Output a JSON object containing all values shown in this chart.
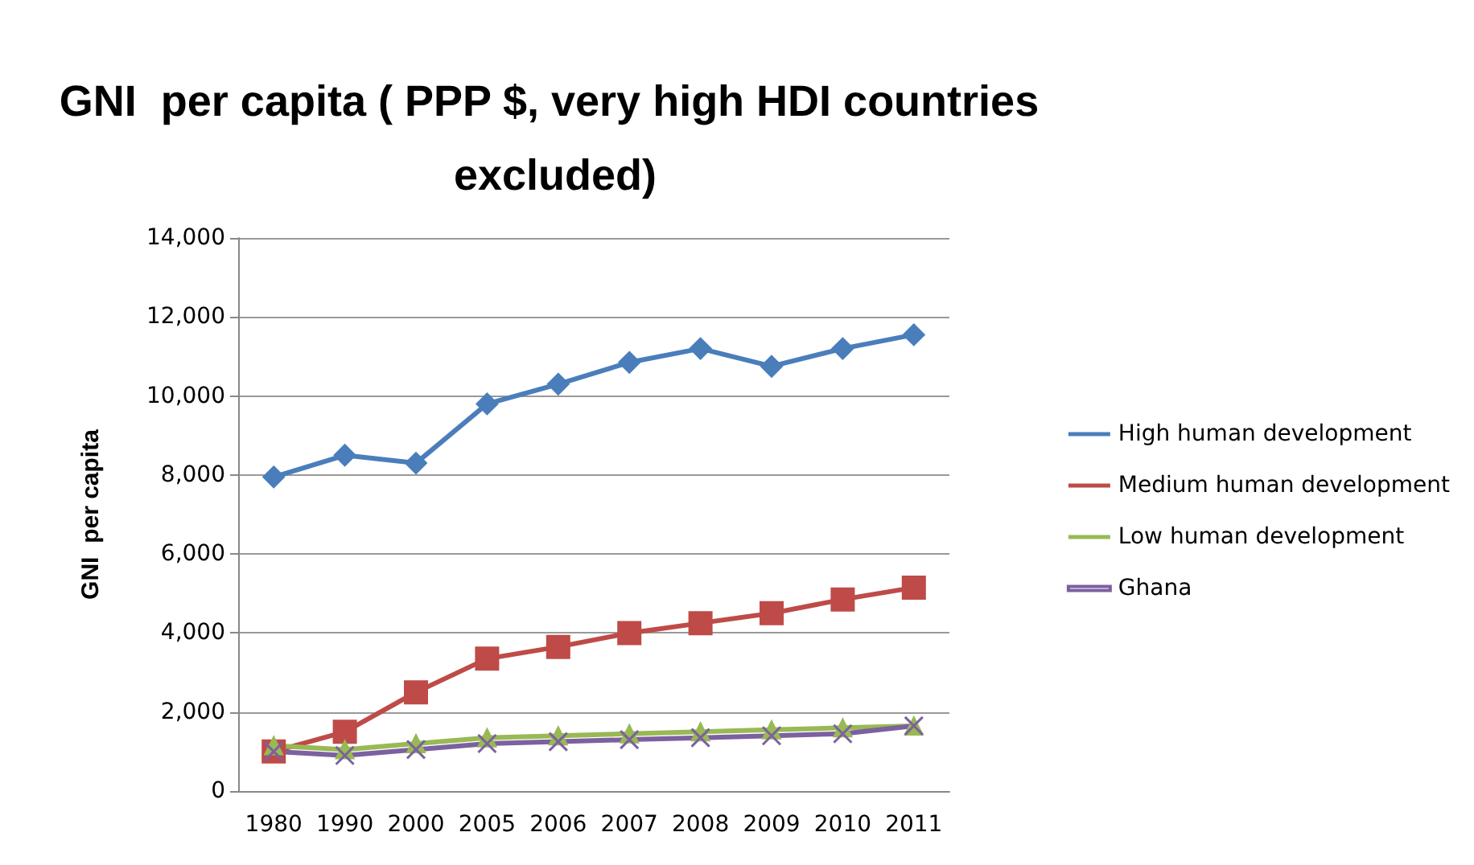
{
  "chart_data": {
    "type": "line",
    "title": "GNI  per capita ( PPP $, very high HDI countries excluded)",
    "ylabel": "GNI  per capita",
    "categories": [
      "1980",
      "1990",
      "2000",
      "2005",
      "2006",
      "2007",
      "2008",
      "2009",
      "2010",
      "2011"
    ],
    "series": [
      {
        "name": "High human development",
        "color": "#4a7ebb",
        "marker": "diamond",
        "values": [
          7950,
          8500,
          8300,
          9800,
          10300,
          10850,
          11200,
          10750,
          11200,
          11550
        ]
      },
      {
        "name": "Medium human development",
        "color": "#be4b48",
        "marker": "square",
        "values": [
          1000,
          1500,
          2500,
          3350,
          3650,
          4000,
          4250,
          4500,
          4850,
          5150
        ]
      },
      {
        "name": "Low human development",
        "color": "#98b954",
        "marker": "triangle",
        "values": [
          1150,
          1050,
          1200,
          1350,
          1400,
          1450,
          1500,
          1550,
          1600,
          1650
        ]
      },
      {
        "name": "Ghana",
        "color": "#7d60a0",
        "marker": "cross",
        "values": [
          1000,
          900,
          1050,
          1200,
          1250,
          1300,
          1350,
          1400,
          1450,
          1650
        ]
      }
    ],
    "ylim": [
      0,
      14000
    ],
    "yticks": [
      0,
      {
        "value": 2000,
        "label": "2,000"
      },
      {
        "value": 4000,
        "label": "4,000"
      },
      {
        "value": 6000,
        "label": "6,000"
      },
      {
        "value": 8000,
        "label": "8,000"
      },
      {
        "value": 10000,
        "label": "10,000"
      },
      {
        "value": 12000,
        "label": "12,000"
      },
      {
        "value": 14000,
        "label": "14,000"
      }
    ],
    "grid": "y",
    "legend": "right"
  }
}
